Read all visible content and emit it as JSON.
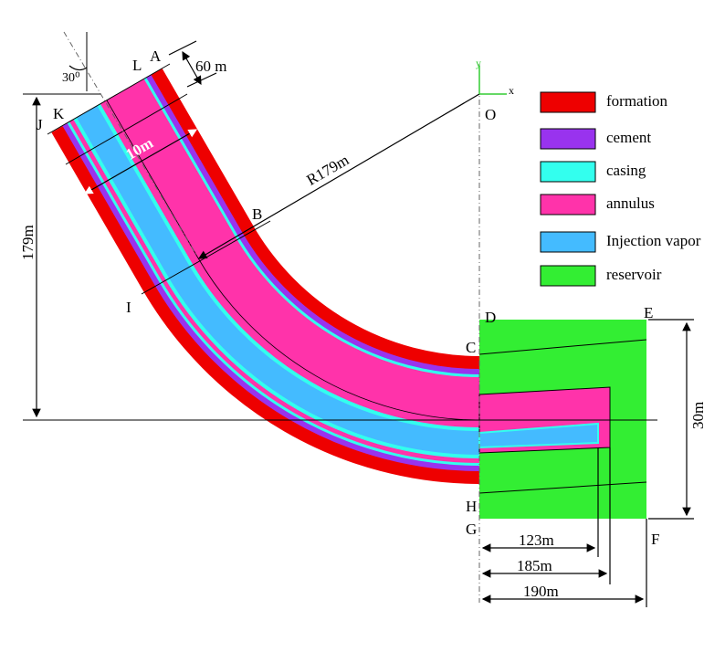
{
  "points": {
    "A": "A",
    "B": "B",
    "C": "C",
    "D": "D",
    "E": "E",
    "F": "F",
    "G": "G",
    "H": "H",
    "I": "I",
    "J": "J",
    "K": "K",
    "L": "L",
    "O": "O"
  },
  "axes": {
    "x": "x",
    "y": "y"
  },
  "dimensions": {
    "thickness": "60 m",
    "angle": "30⁰",
    "width": "10m",
    "radius": "R179m",
    "height": "179m",
    "reservoir_height": "30m",
    "tubing": "123m",
    "annulus": "185m",
    "reservoir_length": "190m"
  },
  "legend": [
    {
      "name": "formation",
      "color": "#ee0000"
    },
    {
      "name": "cement",
      "color": "#9933ee"
    },
    {
      "name": "casing",
      "color": "#33ffee"
    },
    {
      "name": "annulus",
      "color": "#ff33aa"
    },
    {
      "name": "Injection vapor",
      "color": "#44bbff"
    },
    {
      "name": "reservoir",
      "color": "#33ee33"
    }
  ]
}
